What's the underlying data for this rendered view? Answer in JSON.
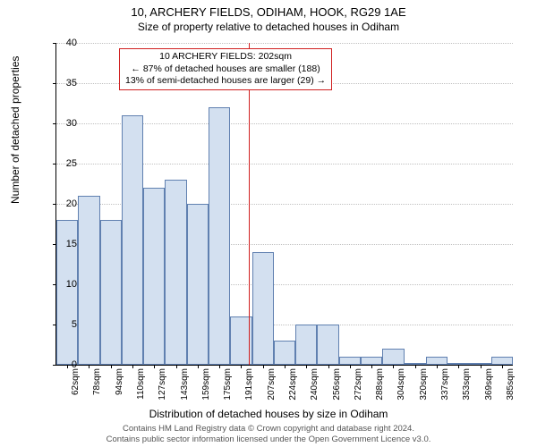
{
  "title": "10, ARCHERY FIELDS, ODIHAM, HOOK, RG29 1AE",
  "subtitle": "Size of property relative to detached houses in Odiham",
  "ylabel": "Number of detached properties",
  "xlabel": "Distribution of detached houses by size in Odiham",
  "footer_line1": "Contains HM Land Registry data © Crown copyright and database right 2024.",
  "footer_line2": "Contains public sector information licensed under the Open Government Licence v3.0.",
  "chart": {
    "type": "histogram",
    "ylim": [
      0,
      40
    ],
    "ytick_step": 5,
    "bar_fill": "#d3e0f0",
    "bar_stroke": "#6080b0",
    "grid_color": "#c0c0c0",
    "background": "#ffffff",
    "ref_color": "#d02020",
    "x_categories": [
      "62sqm",
      "78sqm",
      "94sqm",
      "110sqm",
      "127sqm",
      "143sqm",
      "159sqm",
      "175sqm",
      "191sqm",
      "207sqm",
      "224sqm",
      "240sqm",
      "256sqm",
      "272sqm",
      "288sqm",
      "304sqm",
      "320sqm",
      "337sqm",
      "353sqm",
      "369sqm",
      "385sqm"
    ],
    "values": [
      18,
      21,
      18,
      31,
      22,
      23,
      20,
      32,
      6,
      14,
      3,
      5,
      5,
      1,
      1,
      2,
      0,
      1,
      0,
      0,
      1
    ],
    "ref_index_position": 8.85,
    "callout": {
      "line1": "10 ARCHERY FIELDS: 202sqm",
      "line2": "← 87% of detached houses are smaller (188)",
      "line3": "13% of semi-detached houses are larger (29) →"
    },
    "bar_count": 21,
    "label_fontsize": 12,
    "tick_fontsize": 11
  }
}
